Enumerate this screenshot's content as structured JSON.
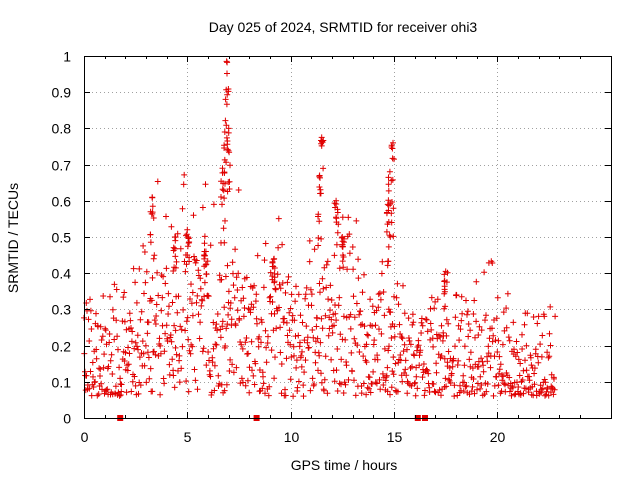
{
  "chart_data": {
    "type": "scatter",
    "title": "Day 025 of 2024, SRMTID for receiver ohi3",
    "xlabel": "GPS time / hours",
    "ylabel": "SRMTID / TECUs",
    "xlim": [
      0,
      25.5
    ],
    "ylim": [
      0,
      1
    ],
    "x_ticks": [
      0,
      5,
      10,
      15,
      20
    ],
    "x_tick_labels": [
      "0",
      "5",
      "10",
      "15",
      "20"
    ],
    "y_ticks": [
      0,
      0.1,
      0.2,
      0.3,
      0.4,
      0.5,
      0.6,
      0.7,
      0.8,
      0.9,
      1
    ],
    "y_tick_labels": [
      "0",
      "0.1",
      "0.2",
      "0.3",
      "0.4",
      "0.5",
      "0.6",
      "0.7",
      "0.8",
      "0.9",
      "1"
    ],
    "grid": true,
    "marker": "plus",
    "color": "#e00000",
    "series": [
      {
        "name": "SRMTID",
        "profile_hours": [
          0,
          0.5,
          1,
          1.5,
          2,
          2.5,
          3,
          3.5,
          4,
          4.5,
          5,
          5.5,
          6,
          6.5,
          7,
          7.5,
          8,
          8.5,
          9,
          9.5,
          10,
          10.5,
          11,
          11.5,
          12,
          12.5,
          13,
          13.5,
          14,
          14.5,
          15,
          15.5,
          16,
          16.5,
          17,
          17.5,
          18,
          18.5,
          19,
          19.5,
          20,
          20.5,
          21,
          21.5,
          22,
          22.5,
          23
        ],
        "profile_mean": [
          0.17,
          0.15,
          0.16,
          0.15,
          0.15,
          0.18,
          0.22,
          0.28,
          0.27,
          0.29,
          0.3,
          0.27,
          0.26,
          0.25,
          0.27,
          0.25,
          0.23,
          0.21,
          0.25,
          0.26,
          0.22,
          0.21,
          0.22,
          0.2,
          0.25,
          0.28,
          0.3,
          0.22,
          0.2,
          0.2,
          0.21,
          0.18,
          0.17,
          0.14,
          0.16,
          0.19,
          0.18,
          0.17,
          0.17,
          0.19,
          0.15,
          0.14,
          0.14,
          0.13,
          0.13,
          0.12,
          0.12
        ],
        "spikes": [
          {
            "x": 3.3,
            "y": 0.61
          },
          {
            "x": 4.4,
            "y": 0.5
          },
          {
            "x": 5.0,
            "y": 0.52
          },
          {
            "x": 5.9,
            "y": 0.46
          },
          {
            "x": 6.7,
            "y": 0.69
          },
          {
            "x": 6.85,
            "y": 0.88
          },
          {
            "x": 6.9,
            "y": 0.985
          },
          {
            "x": 7.0,
            "y": 0.8
          },
          {
            "x": 9.2,
            "y": 0.44
          },
          {
            "x": 11.4,
            "y": 0.67
          },
          {
            "x": 11.5,
            "y": 0.775
          },
          {
            "x": 12.2,
            "y": 0.6
          },
          {
            "x": 12.5,
            "y": 0.5
          },
          {
            "x": 14.7,
            "y": 0.59
          },
          {
            "x": 14.8,
            "y": 0.68
          },
          {
            "x": 14.95,
            "y": 0.76
          },
          {
            "x": 17.5,
            "y": 0.405
          }
        ],
        "data_end_hour": 22.8
      }
    ],
    "zero_markers": [
      1.75,
      8.35,
      16.15,
      16.5
    ]
  }
}
